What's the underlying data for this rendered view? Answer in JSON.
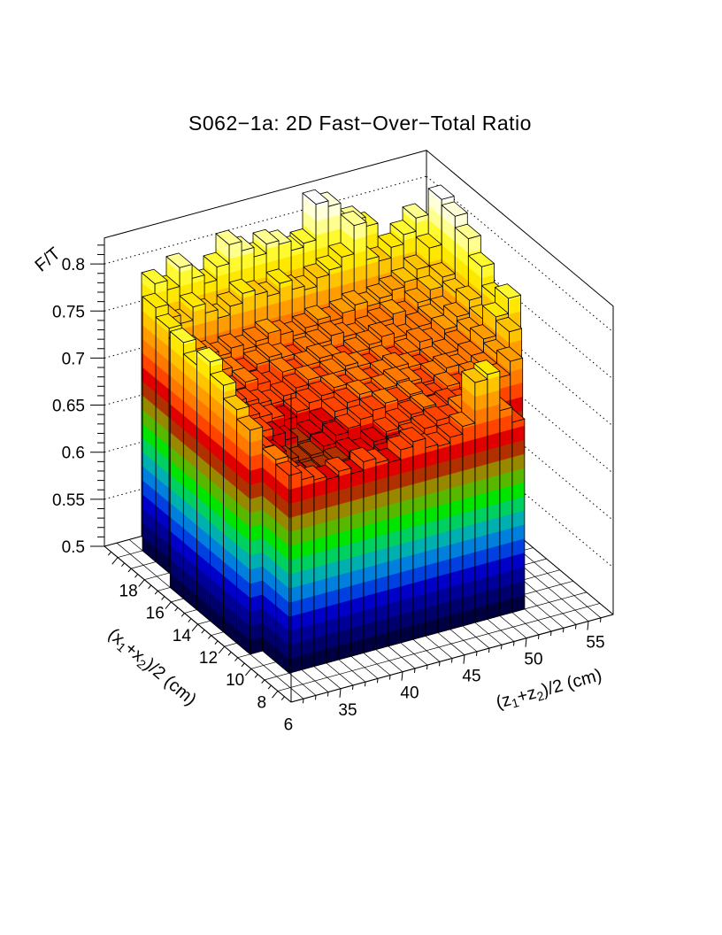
{
  "title": "S062−1a: 2D Fast−Over−Total Ratio",
  "chart_data": {
    "type": "lego3d-histogram",
    "title": "S062−1a: 2D Fast−Over−Total Ratio",
    "x_axis": {
      "label": "(z₁+z₂)/2 (cm)",
      "min": 31,
      "max": 57,
      "bin_width": 1,
      "tick_values": [
        35,
        40,
        45,
        50,
        55
      ],
      "tick_labels": [
        "35",
        "40",
        "45",
        "50",
        "55"
      ],
      "minor_tick_step": 1
    },
    "y_axis": {
      "label": "(x₁+x₂)/2 (cm)",
      "min": 5,
      "max": 19,
      "bin_width": 1,
      "tick_values": [
        6,
        8,
        10,
        12,
        14,
        16,
        18
      ],
      "tick_labels": [
        "6",
        "8",
        "10",
        "12",
        "14",
        "16",
        "18"
      ],
      "minor_tick_step": 0.5
    },
    "z_axis": {
      "label": "F/T",
      "min": 0.5,
      "max": 0.8276,
      "tick_values": [
        0.5,
        0.55,
        0.6,
        0.65,
        0.7,
        0.75,
        0.8
      ],
      "tick_labels": [
        "0.5",
        "0.55",
        "0.6",
        "0.65",
        "0.7",
        "0.75",
        "0.8"
      ],
      "minor_tick_step": 0.01
    },
    "palette": {
      "z_start": 0.5,
      "band_height": 0.015,
      "colors": [
        "#000040",
        "#00006C",
        "#000098",
        "#0000C8",
        "#0040E0",
        "#0080DC",
        "#00B0B0",
        "#00D060",
        "#00E400",
        "#58B800",
        "#988800",
        "#B03000",
        "#E00000",
        "#FF4400",
        "#FF7800",
        "#FF9C00",
        "#FFC400",
        "#FFE800",
        "#FFFA30",
        "#FFFF90",
        "#FFFFD8",
        "#FFFFFF"
      ]
    },
    "line_color": "#000000",
    "background": "#FFFFFF",
    "heights": [
      [
        0,
        0,
        0,
        0,
        0,
        0,
        0,
        0,
        0,
        0,
        0,
        0,
        0,
        0,
        0,
        0,
        0,
        0,
        0,
        0,
        0,
        0,
        0,
        0,
        0,
        0
      ],
      [
        0,
        0,
        0,
        0,
        0,
        0,
        0,
        0,
        0,
        0,
        0,
        0,
        0,
        0,
        0,
        0,
        0,
        0,
        0,
        0,
        0,
        0,
        0,
        0,
        0,
        0
      ],
      [
        0,
        0,
        0.71,
        0.702,
        0.698,
        0.695,
        0.7,
        0.694,
        0.703,
        0.698,
        0.695,
        0.705,
        0.71,
        0.7,
        0.698,
        0.704,
        0.712,
        0.755,
        0.76,
        0.718,
        0.702,
        0,
        0,
        0,
        0,
        0
      ],
      [
        0,
        0,
        0.715,
        0.7,
        0.69,
        0.682,
        0.676,
        0.672,
        0.678,
        0.684,
        0.68,
        0.686,
        0.692,
        0.7,
        0.705,
        0.71,
        0.708,
        0.715,
        0.712,
        0.705,
        0.7,
        0,
        0,
        0,
        0,
        0
      ],
      [
        0,
        0.738,
        0.705,
        0.692,
        0.684,
        0.676,
        0.673,
        0.675,
        0.68,
        0.686,
        0.682,
        0.69,
        0.697,
        0.703,
        0.708,
        0.712,
        0.707,
        0.71,
        0.706,
        0.702,
        0.712,
        0.722,
        0.736,
        0,
        0,
        0
      ],
      [
        0,
        0.748,
        0.712,
        0.7,
        0.69,
        0.68,
        0.676,
        0.678,
        0.684,
        0.692,
        0.696,
        0.702,
        0.708,
        0.712,
        0.71,
        0.714,
        0.708,
        0.704,
        0.712,
        0.707,
        0.716,
        0.722,
        0.732,
        0.752,
        0,
        0
      ],
      [
        0,
        0.762,
        0.722,
        0.708,
        0.702,
        0.694,
        0.686,
        0.68,
        0.685,
        0.694,
        0.702,
        0.708,
        0.713,
        0.707,
        0.712,
        0.716,
        0.712,
        0.707,
        0.712,
        0.716,
        0.712,
        0.722,
        0.736,
        0.756,
        0.772,
        0
      ],
      [
        0,
        0.775,
        0.73,
        0.712,
        0.706,
        0.702,
        0.697,
        0.692,
        0.697,
        0.703,
        0.707,
        0.712,
        0.707,
        0.712,
        0.707,
        0.712,
        0.716,
        0.712,
        0.707,
        0.712,
        0.716,
        0.722,
        0.732,
        0.742,
        0.762,
        0
      ],
      [
        0,
        0.76,
        0.726,
        0.716,
        0.71,
        0.706,
        0.701,
        0.697,
        0.702,
        0.707,
        0.712,
        0.707,
        0.712,
        0.716,
        0.712,
        0.707,
        0.712,
        0.707,
        0.712,
        0.72,
        0.716,
        0.726,
        0.736,
        0.75,
        0.782,
        0
      ],
      [
        0,
        0.772,
        0.736,
        0.72,
        0.712,
        0.707,
        0.712,
        0.706,
        0.701,
        0.712,
        0.707,
        0.712,
        0.716,
        0.712,
        0.707,
        0.712,
        0.716,
        0.721,
        0.716,
        0.712,
        0.721,
        0.726,
        0.731,
        0.746,
        0.8,
        0
      ],
      [
        0,
        0,
        0.75,
        0.73,
        0.72,
        0.716,
        0.712,
        0.707,
        0.712,
        0.716,
        0.712,
        0.707,
        0.712,
        0.716,
        0.721,
        0.716,
        0.712,
        0.716,
        0.721,
        0.726,
        0.721,
        0.731,
        0.741,
        0.751,
        0.812,
        0
      ],
      [
        0,
        0,
        0.76,
        0.74,
        0.73,
        0.721,
        0.716,
        0.721,
        0.716,
        0.721,
        0.726,
        0.721,
        0.716,
        0.721,
        0.726,
        0.721,
        0.726,
        0.731,
        0.726,
        0.731,
        0.736,
        0.741,
        0.751,
        0.77,
        0.818,
        0
      ],
      [
        0,
        0,
        0.77,
        0.755,
        0.746,
        0.76,
        0.75,
        0.741,
        0.75,
        0.76,
        0.755,
        0.75,
        0.76,
        0.75,
        0.746,
        0.755,
        0.76,
        0.77,
        0.8,
        0.76,
        0.755,
        0.766,
        0.776,
        0.79,
        0,
        0
      ],
      [
        0,
        0,
        0,
        0.78,
        0.77,
        0.79,
        0.775,
        0.766,
        0.78,
        0.8,
        0.79,
        0.78,
        0.79,
        0.786,
        0.776,
        0.78,
        0.818,
        0.812,
        0.786,
        0.79,
        0.78,
        0,
        0,
        0,
        0,
        0
      ]
    ]
  }
}
